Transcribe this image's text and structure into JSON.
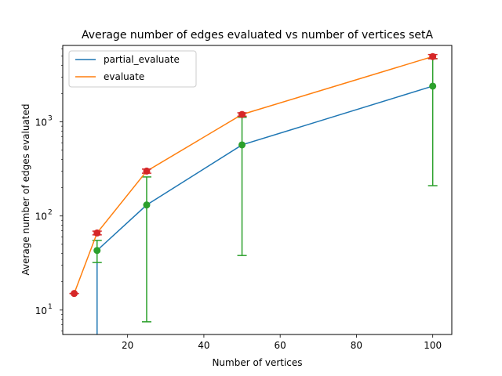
{
  "chart_data": {
    "type": "line",
    "title": "Average number of edges evaluated vs number of vertices setA",
    "xlabel": "Number of vertices",
    "ylabel": "Average number of edges evaluated",
    "xlim": [
      3,
      105
    ],
    "ylim": [
      5.5,
      6500
    ],
    "yscale": "log",
    "grid": false,
    "legend_position": "top-left",
    "x_ticks": [
      20,
      40,
      60,
      80,
      100
    ],
    "x_tick_labels": [
      "20",
      "40",
      "60",
      "80",
      "100"
    ],
    "y_ticks": [
      10,
      100,
      1000
    ],
    "y_tick_labels": [
      "10",
      "10",
      "10"
    ],
    "y_tick_exponents": [
      "1",
      "2",
      "3"
    ],
    "series": [
      {
        "name": "partial_evaluate",
        "color": "#1f77b4",
        "marker_color": "#2ca02c",
        "x": [
          12,
          25,
          50,
          100
        ],
        "y": [
          43,
          131,
          570,
          2400
        ],
        "err_low": [
          32,
          7.5,
          38,
          210
        ],
        "err_high": [
          55,
          260,
          1120,
          4700
        ],
        "line_extends_below": true
      },
      {
        "name": "evaluate",
        "color": "#ff7f0e",
        "marker_color": "#d62728",
        "x": [
          6,
          12,
          25,
          50,
          100
        ],
        "y": [
          15,
          66,
          300,
          1200,
          4950
        ],
        "err_low": [
          15,
          63,
          285,
          1150,
          4700
        ],
        "err_high": [
          15,
          69,
          315,
          1250,
          5200
        ]
      }
    ],
    "errorbar_color": "#2ca02c",
    "errorbar_color_evaluate": "#d62728"
  }
}
